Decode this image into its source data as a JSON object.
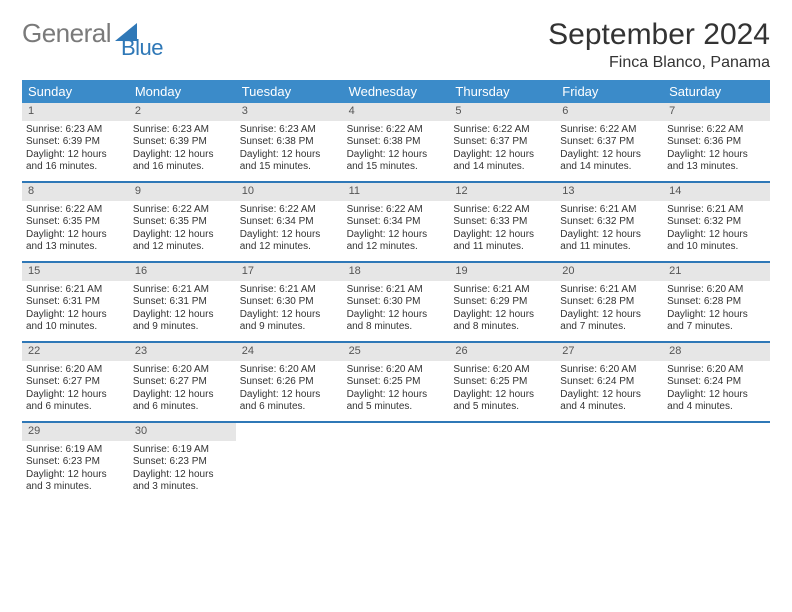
{
  "brand": {
    "word1": "General",
    "word2": "Blue"
  },
  "title": "September 2024",
  "location": "Finca Blanco, Panama",
  "colors": {
    "header_bg": "#3b8bc9",
    "header_text": "#ffffff",
    "accent_border": "#2f78b7",
    "daynum_bg": "#e6e6e6",
    "text": "#333333",
    "logo_gray": "#7a7a7a",
    "logo_blue": "#2f78b7"
  },
  "day_names": [
    "Sunday",
    "Monday",
    "Tuesday",
    "Wednesday",
    "Thursday",
    "Friday",
    "Saturday"
  ],
  "days": [
    {
      "n": 1,
      "sunrise": "6:23 AM",
      "sunset": "6:39 PM",
      "daylight": "12 hours and 16 minutes."
    },
    {
      "n": 2,
      "sunrise": "6:23 AM",
      "sunset": "6:39 PM",
      "daylight": "12 hours and 16 minutes."
    },
    {
      "n": 3,
      "sunrise": "6:23 AM",
      "sunset": "6:38 PM",
      "daylight": "12 hours and 15 minutes."
    },
    {
      "n": 4,
      "sunrise": "6:22 AM",
      "sunset": "6:38 PM",
      "daylight": "12 hours and 15 minutes."
    },
    {
      "n": 5,
      "sunrise": "6:22 AM",
      "sunset": "6:37 PM",
      "daylight": "12 hours and 14 minutes."
    },
    {
      "n": 6,
      "sunrise": "6:22 AM",
      "sunset": "6:37 PM",
      "daylight": "12 hours and 14 minutes."
    },
    {
      "n": 7,
      "sunrise": "6:22 AM",
      "sunset": "6:36 PM",
      "daylight": "12 hours and 13 minutes."
    },
    {
      "n": 8,
      "sunrise": "6:22 AM",
      "sunset": "6:35 PM",
      "daylight": "12 hours and 13 minutes."
    },
    {
      "n": 9,
      "sunrise": "6:22 AM",
      "sunset": "6:35 PM",
      "daylight": "12 hours and 12 minutes."
    },
    {
      "n": 10,
      "sunrise": "6:22 AM",
      "sunset": "6:34 PM",
      "daylight": "12 hours and 12 minutes."
    },
    {
      "n": 11,
      "sunrise": "6:22 AM",
      "sunset": "6:34 PM",
      "daylight": "12 hours and 12 minutes."
    },
    {
      "n": 12,
      "sunrise": "6:22 AM",
      "sunset": "6:33 PM",
      "daylight": "12 hours and 11 minutes."
    },
    {
      "n": 13,
      "sunrise": "6:21 AM",
      "sunset": "6:32 PM",
      "daylight": "12 hours and 11 minutes."
    },
    {
      "n": 14,
      "sunrise": "6:21 AM",
      "sunset": "6:32 PM",
      "daylight": "12 hours and 10 minutes."
    },
    {
      "n": 15,
      "sunrise": "6:21 AM",
      "sunset": "6:31 PM",
      "daylight": "12 hours and 10 minutes."
    },
    {
      "n": 16,
      "sunrise": "6:21 AM",
      "sunset": "6:31 PM",
      "daylight": "12 hours and 9 minutes."
    },
    {
      "n": 17,
      "sunrise": "6:21 AM",
      "sunset": "6:30 PM",
      "daylight": "12 hours and 9 minutes."
    },
    {
      "n": 18,
      "sunrise": "6:21 AM",
      "sunset": "6:30 PM",
      "daylight": "12 hours and 8 minutes."
    },
    {
      "n": 19,
      "sunrise": "6:21 AM",
      "sunset": "6:29 PM",
      "daylight": "12 hours and 8 minutes."
    },
    {
      "n": 20,
      "sunrise": "6:21 AM",
      "sunset": "6:28 PM",
      "daylight": "12 hours and 7 minutes."
    },
    {
      "n": 21,
      "sunrise": "6:20 AM",
      "sunset": "6:28 PM",
      "daylight": "12 hours and 7 minutes."
    },
    {
      "n": 22,
      "sunrise": "6:20 AM",
      "sunset": "6:27 PM",
      "daylight": "12 hours and 6 minutes."
    },
    {
      "n": 23,
      "sunrise": "6:20 AM",
      "sunset": "6:27 PM",
      "daylight": "12 hours and 6 minutes."
    },
    {
      "n": 24,
      "sunrise": "6:20 AM",
      "sunset": "6:26 PM",
      "daylight": "12 hours and 6 minutes."
    },
    {
      "n": 25,
      "sunrise": "6:20 AM",
      "sunset": "6:25 PM",
      "daylight": "12 hours and 5 minutes."
    },
    {
      "n": 26,
      "sunrise": "6:20 AM",
      "sunset": "6:25 PM",
      "daylight": "12 hours and 5 minutes."
    },
    {
      "n": 27,
      "sunrise": "6:20 AM",
      "sunset": "6:24 PM",
      "daylight": "12 hours and 4 minutes."
    },
    {
      "n": 28,
      "sunrise": "6:20 AM",
      "sunset": "6:24 PM",
      "daylight": "12 hours and 4 minutes."
    },
    {
      "n": 29,
      "sunrise": "6:19 AM",
      "sunset": "6:23 PM",
      "daylight": "12 hours and 3 minutes."
    },
    {
      "n": 30,
      "sunrise": "6:19 AM",
      "sunset": "6:23 PM",
      "daylight": "12 hours and 3 minutes."
    }
  ],
  "labels": {
    "sunrise_prefix": "Sunrise: ",
    "sunset_prefix": "Sunset: ",
    "daylight_prefix": "Daylight: "
  },
  "layout": {
    "first_day_offset": 0,
    "columns": 7,
    "rows": 5
  }
}
